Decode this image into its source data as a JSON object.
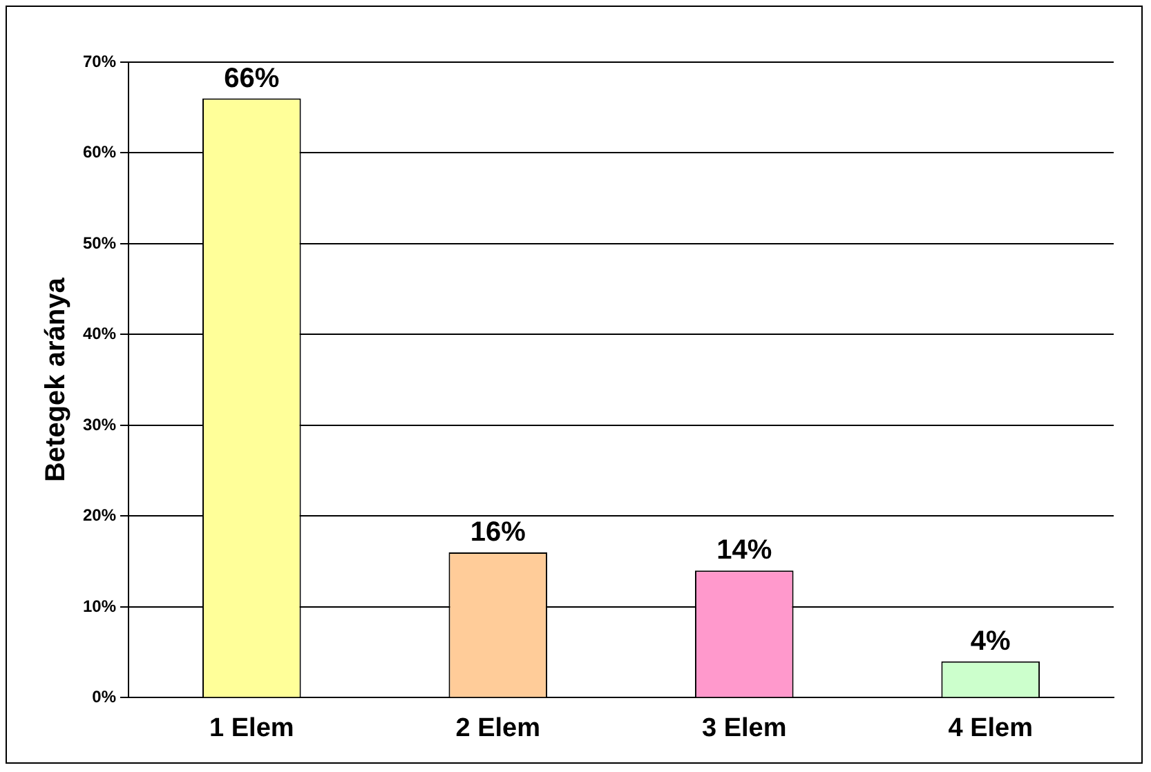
{
  "chart_data": {
    "type": "bar",
    "ylabel": "Betegek aránya",
    "categories": [
      "1 Elem",
      "2 Elem",
      "3 Elem",
      "4 Elem"
    ],
    "values": [
      66,
      16,
      14,
      4
    ],
    "colors": [
      "#ffff99",
      "#ffcc99",
      "#ff99cc",
      "#ccffcc"
    ],
    "value_labels": [
      "66%",
      "16%",
      "14%",
      "4%"
    ],
    "ylim": [
      0,
      70
    ],
    "yticks": [
      {
        "value": 0,
        "label": "0%"
      },
      {
        "value": 10,
        "label": "10%"
      },
      {
        "value": 20,
        "label": "20%"
      },
      {
        "value": 30,
        "label": "30%"
      },
      {
        "value": 40,
        "label": "40%"
      },
      {
        "value": 50,
        "label": "50%"
      },
      {
        "value": 60,
        "label": "60%"
      },
      {
        "value": 70,
        "label": "70%"
      }
    ],
    "grid": "y",
    "legend": false
  }
}
